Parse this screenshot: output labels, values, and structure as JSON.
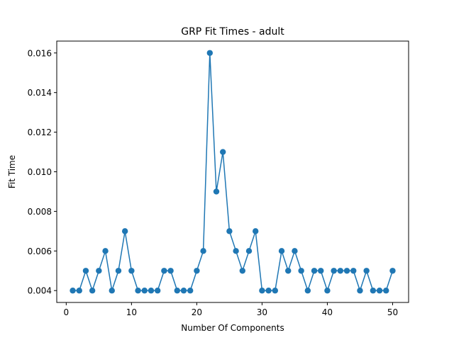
{
  "chart_data": {
    "type": "line",
    "title": "GRP Fit Times - adult",
    "xlabel": "Number Of Components",
    "ylabel": "Fit Time",
    "xlim": [
      -1.45,
      52.45
    ],
    "ylim": [
      0.0034,
      0.0166
    ],
    "x_ticks": [
      0,
      10,
      20,
      30,
      40,
      50
    ],
    "y_ticks": [
      0.004,
      0.006,
      0.008,
      0.01,
      0.012,
      0.014,
      0.016
    ],
    "y_tick_labels": [
      "0.004",
      "0.006",
      "0.008",
      "0.010",
      "0.012",
      "0.014",
      "0.016"
    ],
    "grid": false,
    "marker": "circle",
    "series_color": "#1f77b4",
    "x": [
      1,
      2,
      3,
      4,
      5,
      6,
      7,
      8,
      9,
      10,
      11,
      12,
      13,
      14,
      15,
      16,
      17,
      18,
      19,
      20,
      21,
      22,
      23,
      24,
      25,
      26,
      27,
      28,
      29,
      30,
      31,
      32,
      33,
      34,
      35,
      36,
      37,
      38,
      39,
      40,
      41,
      42,
      43,
      44,
      45,
      46,
      47,
      48,
      49,
      50
    ],
    "values": [
      0.004,
      0.004,
      0.005,
      0.004,
      0.005,
      0.006,
      0.004,
      0.005,
      0.007,
      0.005,
      0.004,
      0.004,
      0.004,
      0.004,
      0.005,
      0.005,
      0.004,
      0.004,
      0.004,
      0.005,
      0.006,
      0.016,
      0.009,
      0.011,
      0.007,
      0.006,
      0.005,
      0.006,
      0.007,
      0.004,
      0.004,
      0.004,
      0.006,
      0.005,
      0.006,
      0.005,
      0.004,
      0.005,
      0.005,
      0.004,
      0.005,
      0.005,
      0.005,
      0.005,
      0.004,
      0.005,
      0.004,
      0.004,
      0.004,
      0.005
    ]
  }
}
